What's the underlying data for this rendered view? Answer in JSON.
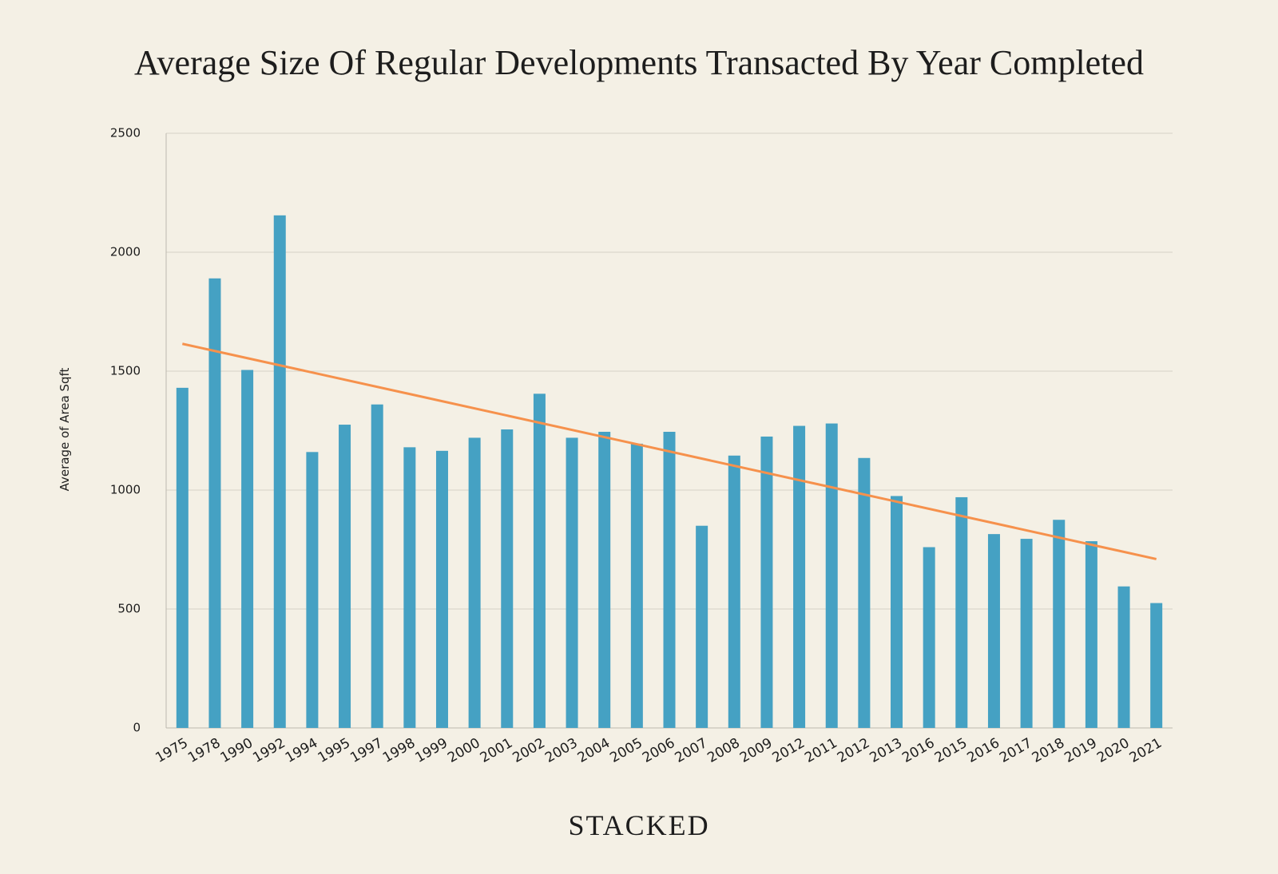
{
  "chart_data": {
    "type": "bar",
    "title": "Average Size Of Regular Developments Transacted By Year Completed",
    "y_label": "Average of Area Sqft",
    "footer": "STACKED",
    "categories": [
      "1975",
      "1978",
      "1990",
      "1992",
      "1994",
      "1995",
      "1997",
      "1998",
      "1999",
      "2000",
      "2001",
      "2002",
      "2003",
      "2004",
      "2005",
      "2006",
      "2007",
      "2008",
      "2009",
      "2012",
      "2011",
      "2012",
      "2013",
      "2016",
      "2015",
      "2016",
      "2017",
      "2018",
      "2019",
      "2020",
      "2021"
    ],
    "values": [
      1430,
      1890,
      1505,
      2155,
      1160,
      1275,
      1360,
      1180,
      1165,
      1220,
      1255,
      1405,
      1220,
      1245,
      1195,
      1245,
      850,
      1145,
      1225,
      1270,
      1280,
      1135,
      975,
      760,
      970,
      815,
      795,
      875,
      785,
      595,
      525
    ],
    "color": "#45a1c3",
    "trendline": {
      "start": 1615,
      "end": 710,
      "color": "#f6914c"
    },
    "ylim": [
      0,
      2500
    ],
    "yticks": [
      0,
      500,
      1000,
      1500,
      2000,
      2500
    ],
    "grid": true
  }
}
